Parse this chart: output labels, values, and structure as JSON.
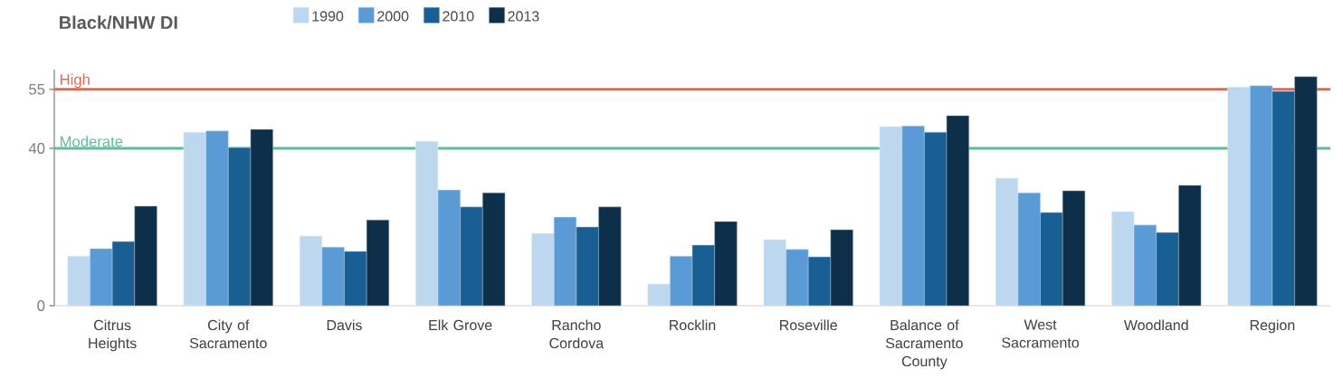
{
  "chart_data": {
    "type": "bar",
    "title": "Black/NHW DI",
    "categories": [
      "Citrus Heights",
      "City of Sacramento",
      "Davis",
      "Elk Grove",
      "Rancho Cordova",
      "Rocklin",
      "Roseville",
      "Balance of Sacramento County",
      "West Sacramento",
      "Woodland",
      "Region"
    ],
    "series": [
      {
        "name": "1990",
        "color": "#bdd7ee",
        "values": [
          12.6,
          44.1,
          17.7,
          41.8,
          18.4,
          5.5,
          16.8,
          45.5,
          32.4,
          23.9,
          55.6
        ]
      },
      {
        "name": "2000",
        "color": "#5b9bd5",
        "values": [
          14.5,
          44.4,
          14.9,
          29.4,
          22.5,
          12.6,
          14.3,
          45.7,
          28.7,
          20.5,
          55.9
        ]
      },
      {
        "name": "2010",
        "color": "#1a5f94",
        "values": [
          16.3,
          40.2,
          13.8,
          25.1,
          20.0,
          15.4,
          12.4,
          44.1,
          23.7,
          18.6,
          54.5
        ]
      },
      {
        "name": "2013",
        "color": "#0d2f4a",
        "values": [
          25.3,
          44.8,
          21.8,
          28.7,
          25.1,
          21.4,
          19.3,
          48.3,
          29.2,
          30.6,
          58.2
        ]
      }
    ],
    "ylim": [
      0,
      60
    ],
    "yticks": [
      0,
      40,
      55
    ],
    "ref_lines": [
      {
        "axis": "y",
        "value": 40,
        "label": "Moderate",
        "color": "#5bbf9a"
      },
      {
        "axis": "y",
        "value": 55,
        "label": "High",
        "color": "#e8664e"
      }
    ],
    "legend": "top"
  }
}
